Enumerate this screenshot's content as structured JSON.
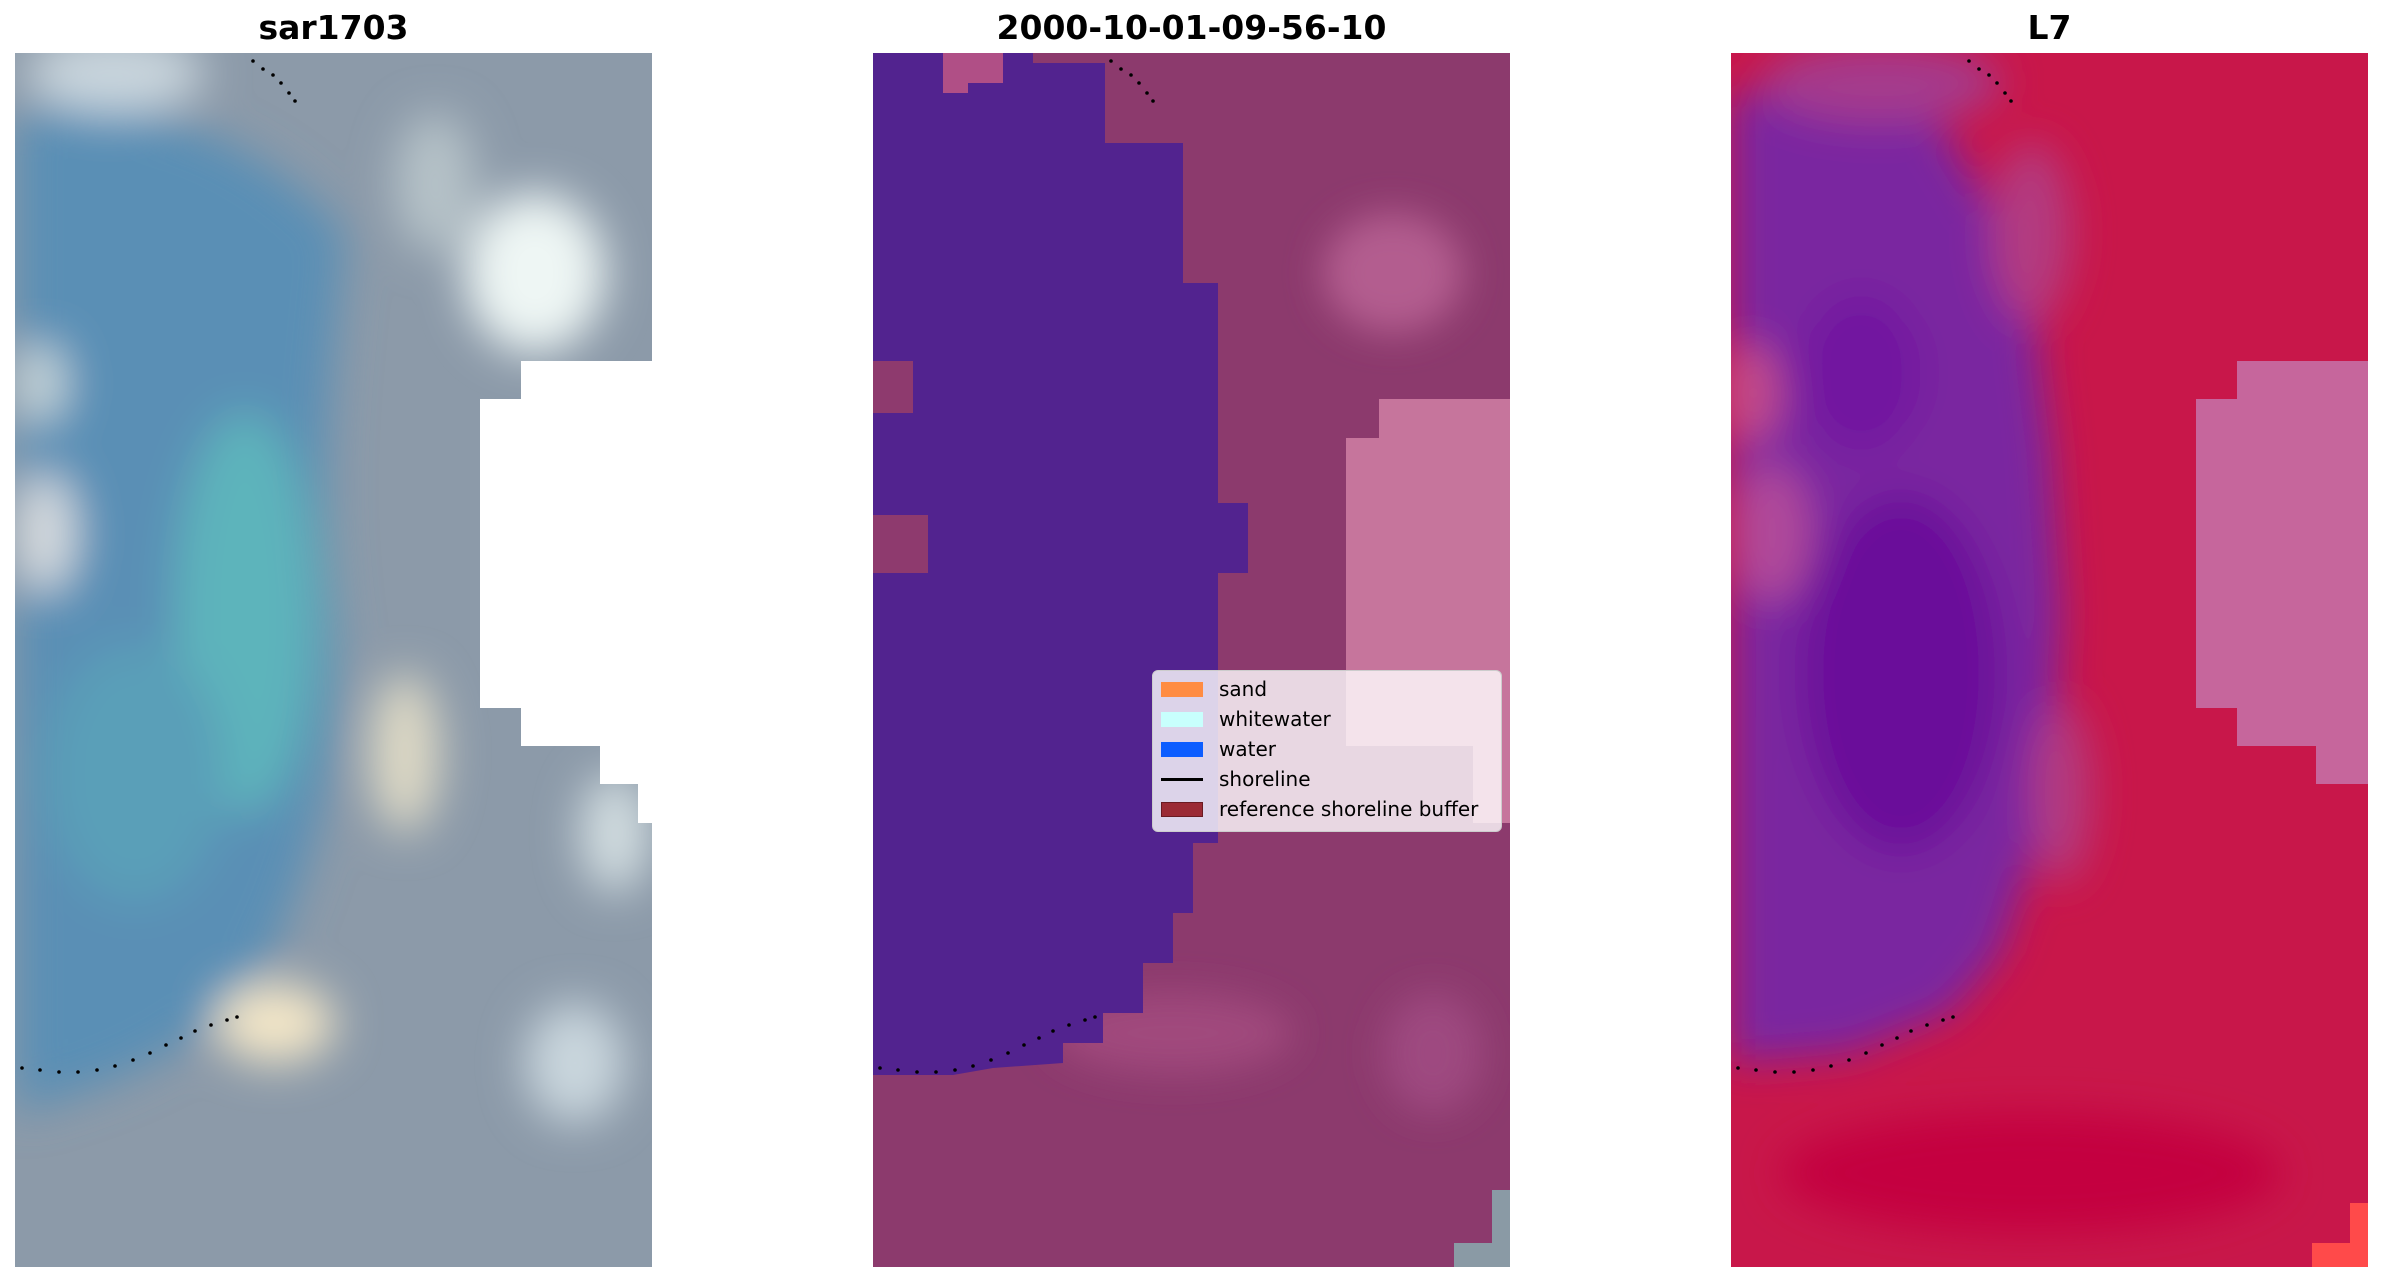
{
  "panels": [
    {
      "title": "sar1703"
    },
    {
      "title": "2000-10-01-09-56-10"
    },
    {
      "title": "L7"
    }
  ],
  "legend": {
    "items": [
      {
        "label": "sand",
        "type": "patch",
        "color": "#ff8c42"
      },
      {
        "label": "whitewater",
        "type": "patch",
        "color": "#c8fffd"
      },
      {
        "label": "water",
        "type": "patch",
        "color": "#0c5dff"
      },
      {
        "label": "shoreline",
        "type": "line",
        "color": "#000000"
      },
      {
        "label": "reference shoreline buffer",
        "type": "patch",
        "color": "#9b2a35"
      }
    ]
  },
  "colors": {
    "rgb_water": "#5a8fb3",
    "rgb_teal": "#5fb0b8",
    "rgb_land": "#8f9aa8",
    "class_water": "#52238f",
    "class_land": "#8e3a6e",
    "buffer_pink": "#c8709a",
    "mndwi_purple": "#7a25a0",
    "mndwi_red": "#c8174a"
  }
}
